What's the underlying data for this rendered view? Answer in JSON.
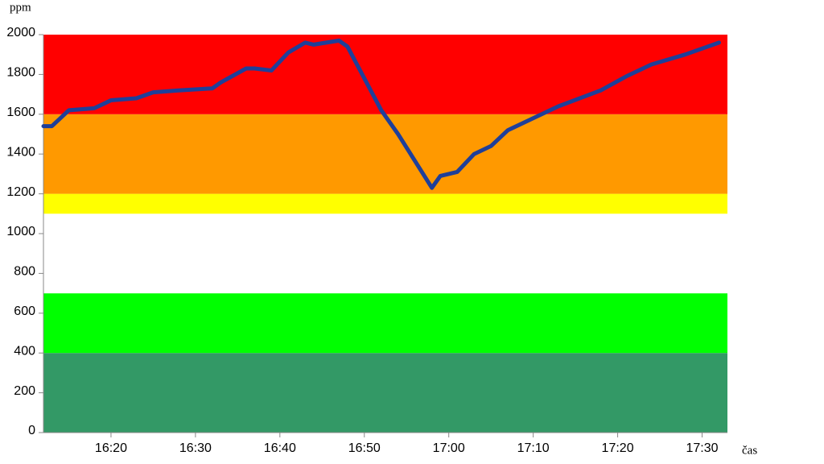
{
  "chart_data": {
    "type": "line",
    "y_label": "ppm",
    "x_label": "čas",
    "x": [
      "16:12",
      "16:13",
      "16:15",
      "16:18",
      "16:20",
      "16:23",
      "16:25",
      "16:28",
      "16:32",
      "16:33",
      "16:36",
      "16:37",
      "16:39",
      "16:41",
      "16:43",
      "16:44",
      "16:47",
      "16:48",
      "16:52",
      "16:54",
      "16:58",
      "16:59",
      "17:01",
      "17:03",
      "17:05",
      "17:07",
      "17:10",
      "17:13",
      "17:18",
      "17:21",
      "17:24",
      "17:28",
      "17:32"
    ],
    "series": [
      {
        "color": "#1f3f99",
        "values": [
          1540,
          1540,
          1620,
          1630,
          1670,
          1680,
          1710,
          1720,
          1730,
          1760,
          1830,
          1830,
          1820,
          1910,
          1960,
          1950,
          1970,
          1940,
          1620,
          1500,
          1230,
          1290,
          1310,
          1400,
          1440,
          1520,
          1580,
          1640,
          1720,
          1790,
          1850,
          1900,
          1960
        ]
      }
    ],
    "xlim": [
      "16:12",
      "17:33"
    ],
    "xticks": [
      "16:20",
      "16:30",
      "16:40",
      "16:50",
      "17:00",
      "17:10",
      "17:20",
      "17:30"
    ],
    "ylim": [
      0,
      2000
    ],
    "yticks": [
      0,
      200,
      400,
      600,
      800,
      1000,
      1200,
      1400,
      1600,
      1800,
      2000
    ],
    "bands": [
      {
        "from": 0,
        "to": 400,
        "color": "#339966"
      },
      {
        "from": 400,
        "to": 700,
        "color": "#00ff00"
      },
      {
        "from": 700,
        "to": 1100,
        "color": "#ffffff"
      },
      {
        "from": 1100,
        "to": 1200,
        "color": "#ffff00"
      },
      {
        "from": 1200,
        "to": 1600,
        "color": "#ff9900"
      },
      {
        "from": 1600,
        "to": 2000,
        "color": "#ff0000"
      }
    ]
  }
}
